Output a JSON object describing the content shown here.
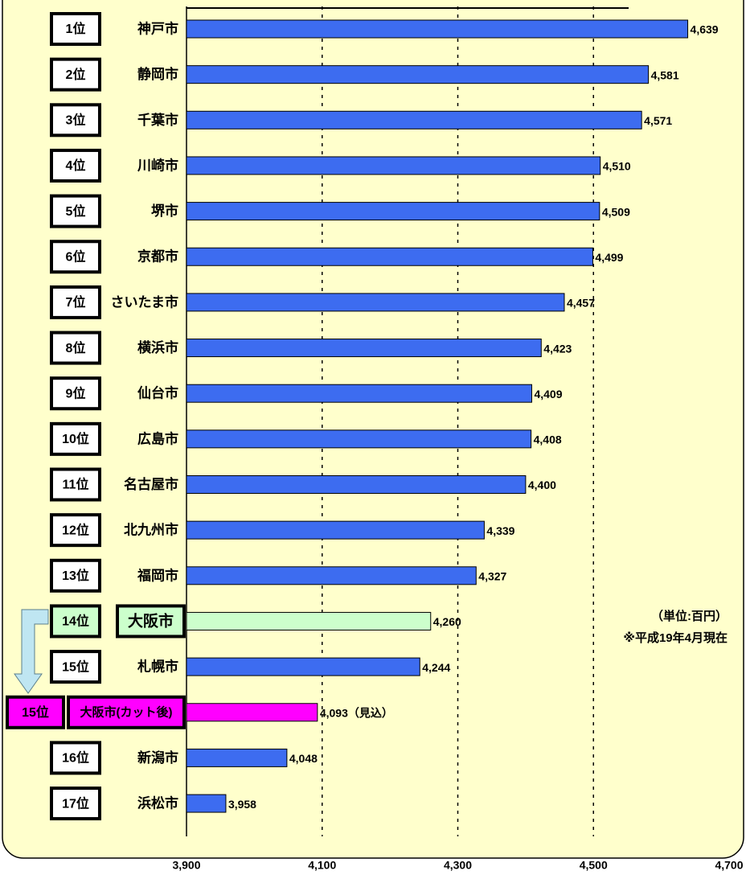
{
  "chart_data": {
    "type": "bar",
    "orientation": "horizontal",
    "ranks": [
      "1位",
      "2位",
      "3位",
      "4位",
      "5位",
      "6位",
      "7位",
      "8位",
      "9位",
      "10位",
      "11位",
      "12位",
      "13位",
      "14位",
      "15位",
      "15位",
      "16位",
      "17位"
    ],
    "categories": [
      "神戸市",
      "静岡市",
      "千葉市",
      "川崎市",
      "堺市",
      "京都市",
      "さいたま市",
      "横浜市",
      "仙台市",
      "広島市",
      "名古屋市",
      "北九州市",
      "福岡市",
      "大阪市",
      "札幌市",
      "大阪市(カット後)",
      "新潟市",
      "浜松市"
    ],
    "values": [
      4639,
      4581,
      4571,
      4510,
      4509,
      4499,
      4457,
      4423,
      4409,
      4408,
      4400,
      4339,
      4327,
      4260,
      4244,
      4093,
      4048,
      3958
    ],
    "value_labels": [
      "4,639",
      "4,581",
      "4,571",
      "4,510",
      "4,509",
      "4,499",
      "4,457",
      "4,423",
      "4,409",
      "4,408",
      "4,400",
      "4,339",
      "4,327",
      "4,260",
      "4,244",
      "4,093（見込）",
      "4,048",
      "3,958"
    ],
    "color": "#3d6cf0",
    "colors": [
      "#3d6cf0",
      "#3d6cf0",
      "#3d6cf0",
      "#3d6cf0",
      "#3d6cf0",
      "#3d6cf0",
      "#3d6cf0",
      "#3d6cf0",
      "#3d6cf0",
      "#3d6cf0",
      "#3d6cf0",
      "#3d6cf0",
      "#3d6cf0",
      "#ccffcc",
      "#3d6cf0",
      "#ff00ff",
      "#3d6cf0",
      "#3d6cf0"
    ],
    "xlim": [
      3900,
      4700
    ],
    "xticks": [
      {
        "value": 3900,
        "label": "3,900"
      },
      {
        "value": 4100,
        "label": "4,100"
      },
      {
        "value": 4300,
        "label": "4,300"
      },
      {
        "value": 4500,
        "label": "4,500"
      },
      {
        "value": 4700,
        "label": "4,700"
      }
    ],
    "grid": true,
    "annotations": [
      "（単位:百円）",
      "※平成19年4月現在"
    ]
  }
}
